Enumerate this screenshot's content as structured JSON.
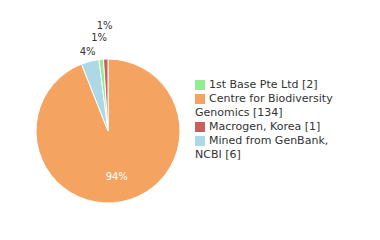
{
  "chart_data": {
    "type": "pie",
    "categories": [
      "Centre for Biodiversity\nGenomics [134]",
      "Mined from GenBank, NCBI [6]",
      "1st Base Pte Ltd [2]",
      "Macrogen, Korea [1]"
    ],
    "values": [
      94,
      4,
      1,
      1
    ],
    "value_labels": [
      "94%",
      "4%",
      "1%",
      "1%"
    ],
    "colors": [
      "#F4A460",
      "#ADD8E6",
      "#90EE90",
      "#CD5C5C"
    ],
    "data_labels": true,
    "legend": "right"
  }
}
